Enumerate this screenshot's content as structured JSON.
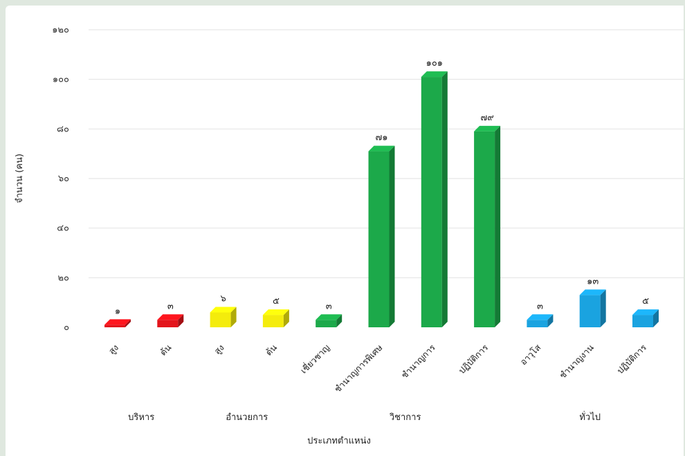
{
  "chart_data": {
    "type": "bar",
    "xlabel": "ประเภทตำแหน่ง",
    "ylabel": "จำนวน (คน)",
    "ylim": [
      0,
      120
    ],
    "yticks": [
      0,
      20,
      40,
      60,
      80,
      100,
      120
    ],
    "ytick_labels": [
      "๐",
      "๒๐",
      "๔๐",
      "๖๐",
      "๘๐",
      "๑๐๐",
      "๑๒๐"
    ],
    "grid": true,
    "legend": "none",
    "groups": [
      {
        "name": "บริหาร",
        "color": "#e3141b",
        "categories": [
          {
            "label": "สูง",
            "value": 1,
            "value_label": "๑"
          },
          {
            "label": "ต้น",
            "value": 3,
            "value_label": "๓"
          }
        ]
      },
      {
        "name": "อำนวยการ",
        "color": "#f4ec0c",
        "categories": [
          {
            "label": "สูง",
            "value": 6,
            "value_label": "๖"
          },
          {
            "label": "ต้น",
            "value": 5,
            "value_label": "๕"
          }
        ]
      },
      {
        "name": "วิชาการ",
        "color": "#1ca94a",
        "categories": [
          {
            "label": "เชี่ยวชาญ",
            "value": 3,
            "value_label": "๓"
          },
          {
            "label": "ชำนาญการพิเศษ",
            "value": 71,
            "value_label": "๗๑"
          },
          {
            "label": "ชำนาญการ",
            "value": 101,
            "value_label": "๑๐๑"
          },
          {
            "label": "ปฏิบัติการ",
            "value": 79,
            "value_label": "๗๙"
          }
        ]
      },
      {
        "name": "ทั่วไป",
        "color": "#1aa3e0",
        "categories": [
          {
            "label": "อาวุโส",
            "value": 3,
            "value_label": "๓"
          },
          {
            "label": "ชำนาญงาน",
            "value": 13,
            "value_label": "๑๓"
          },
          {
            "label": "ปฏิบัติการ",
            "value": 5,
            "value_label": "๕"
          }
        ]
      }
    ]
  }
}
